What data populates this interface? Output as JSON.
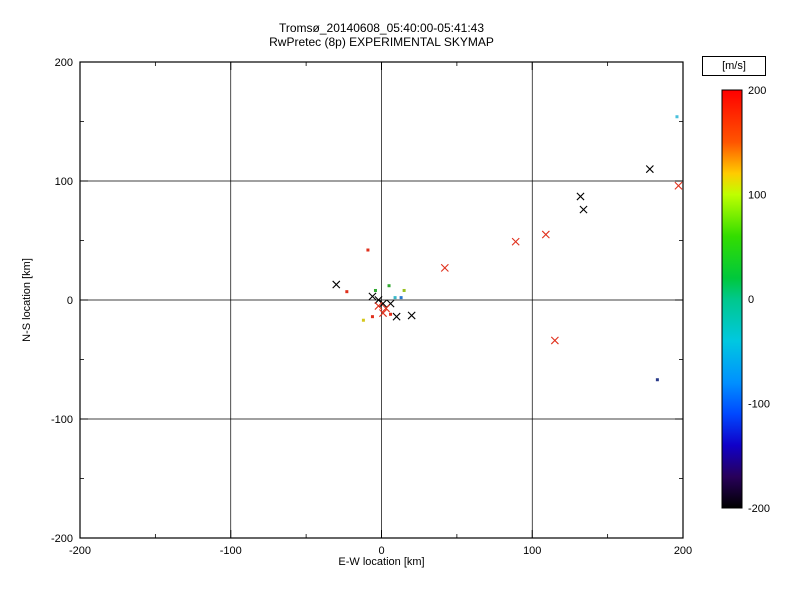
{
  "figure": {
    "title": "Tromsø_20140608_05:40:00-05:41:43",
    "subtitle": "RwPretec (8p) EXPERIMENTAL SKYMAP"
  },
  "chart_data": {
    "type": "scatter",
    "title": "Tromsø_20140608_05:40:00-05:41:43",
    "subtitle": "RwPretec (8p) EXPERIMENTAL SKYMAP",
    "xlabel": "E-W location [km]",
    "ylabel": "N-S location [km]",
    "xlim": [
      -200,
      200
    ],
    "ylim": [
      -200,
      200
    ],
    "xticks": [
      -200,
      -100,
      0,
      100,
      200
    ],
    "yticks": [
      -200,
      -100,
      0,
      100,
      200
    ],
    "grid": true,
    "background": "#ffffff",
    "frame_color": "#000000",
    "colorbar": {
      "label": "[m/s]",
      "min": -200,
      "max": 200,
      "ticks": [
        200,
        100,
        0,
        -100,
        -200
      ],
      "gradient": [
        {
          "pos": 0.0,
          "color": "#ff0000"
        },
        {
          "pos": 0.125,
          "color": "#ff5500"
        },
        {
          "pos": 0.2,
          "color": "#ffcc00"
        },
        {
          "pos": 0.25,
          "color": "#bfff00"
        },
        {
          "pos": 0.35,
          "color": "#33dd00"
        },
        {
          "pos": 0.45,
          "color": "#00c83c"
        },
        {
          "pos": 0.5,
          "color": "#00c88c"
        },
        {
          "pos": 0.6,
          "color": "#00c8e0"
        },
        {
          "pos": 0.7,
          "color": "#0090ff"
        },
        {
          "pos": 0.775,
          "color": "#0048ff"
        },
        {
          "pos": 0.85,
          "color": "#1000c8"
        },
        {
          "pos": 0.925,
          "color": "#28005a"
        },
        {
          "pos": 1.0,
          "color": "#000000"
        }
      ]
    },
    "points": [
      {
        "x": 178,
        "y": 110,
        "marker": "x",
        "color": "#000000"
      },
      {
        "x": 132,
        "y": 87,
        "marker": "x",
        "color": "#000000"
      },
      {
        "x": 134,
        "y": 76,
        "marker": "x",
        "color": "#000000"
      },
      {
        "x": -30,
        "y": 13,
        "marker": "x",
        "color": "#000000"
      },
      {
        "x": -6,
        "y": 3,
        "marker": "x",
        "color": "#000000"
      },
      {
        "x": -2,
        "y": 0,
        "marker": "x",
        "color": "#000000"
      },
      {
        "x": 1,
        "y": -3,
        "marker": "x",
        "color": "#000000"
      },
      {
        "x": 6,
        "y": -3,
        "marker": "x",
        "color": "#000000"
      },
      {
        "x": 10,
        "y": -14,
        "marker": "x",
        "color": "#000000"
      },
      {
        "x": 20,
        "y": -13,
        "marker": "x",
        "color": "#000000"
      },
      {
        "x": 197,
        "y": 96,
        "marker": "x",
        "color": "#e0301c"
      },
      {
        "x": 109,
        "y": 55,
        "marker": "x",
        "color": "#e0301c"
      },
      {
        "x": 89,
        "y": 49,
        "marker": "x",
        "color": "#e0301c"
      },
      {
        "x": 42,
        "y": 27,
        "marker": "x",
        "color": "#e0301c"
      },
      {
        "x": 115,
        "y": -34,
        "marker": "x",
        "color": "#e0301c"
      },
      {
        "x": 3,
        "y": -7,
        "marker": "x",
        "color": "#e0301c"
      },
      {
        "x": -2,
        "y": -5,
        "marker": "x",
        "color": "#e0301c"
      },
      {
        "x": 1,
        "y": -11,
        "marker": "x",
        "color": "#e0301c"
      },
      {
        "x": 196,
        "y": 154,
        "marker": "dot",
        "color": "#48c0dc"
      },
      {
        "x": 183,
        "y": -67,
        "marker": "dot",
        "color": "#283a8a"
      },
      {
        "x": -23,
        "y": 7,
        "marker": "dot",
        "color": "#e0301c"
      },
      {
        "x": -9,
        "y": 42,
        "marker": "dot",
        "color": "#e0301c"
      },
      {
        "x": -4,
        "y": 8,
        "marker": "dot",
        "color": "#30a830"
      },
      {
        "x": 5,
        "y": 12,
        "marker": "dot",
        "color": "#30a830"
      },
      {
        "x": 9,
        "y": 2,
        "marker": "dot",
        "color": "#38b8c8"
      },
      {
        "x": 13,
        "y": 2,
        "marker": "dot",
        "color": "#2878d0"
      },
      {
        "x": 15,
        "y": 8,
        "marker": "dot",
        "color": "#98c020"
      },
      {
        "x": -12,
        "y": -17,
        "marker": "dot",
        "color": "#d4c81c"
      },
      {
        "x": -6,
        "y": -14,
        "marker": "dot",
        "color": "#e0301c"
      },
      {
        "x": 6,
        "y": -12,
        "marker": "dot",
        "color": "#e0301c"
      }
    ]
  }
}
